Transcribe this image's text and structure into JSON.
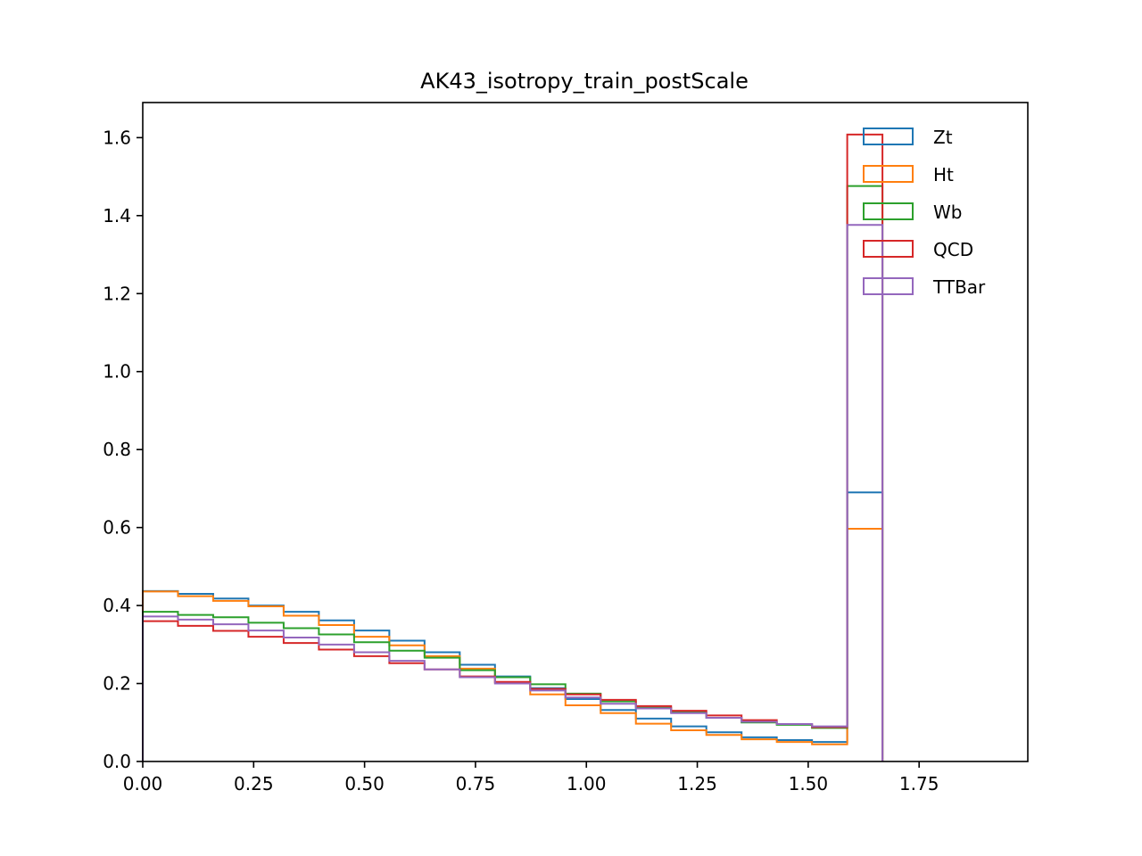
{
  "chart_data": {
    "type": "histogram-step",
    "title": "AK43_isotropy_train_postScale",
    "xlabel": "",
    "ylabel": "",
    "xlim": [
      0.0,
      1.995
    ],
    "ylim": [
      0.0,
      1.69
    ],
    "xticks": [
      0.0,
      0.25,
      0.5,
      0.75,
      1.0,
      1.25,
      1.5,
      1.75
    ],
    "xtick_labels": [
      "0.00",
      "0.25",
      "0.50",
      "0.75",
      "1.00",
      "1.25",
      "1.50",
      "1.75"
    ],
    "yticks": [
      0.0,
      0.2,
      0.4,
      0.6,
      0.8,
      1.0,
      1.2,
      1.4,
      1.6
    ],
    "ytick_labels": [
      "0.0",
      "0.2",
      "0.4",
      "0.6",
      "0.8",
      "1.0",
      "1.2",
      "1.4",
      "1.6"
    ],
    "bin_edges": [
      0.0,
      0.0794,
      0.1588,
      0.2382,
      0.3176,
      0.397,
      0.4764,
      0.5558,
      0.6352,
      0.7146,
      0.794,
      0.8734,
      0.9528,
      1.0322,
      1.1116,
      1.191,
      1.2704,
      1.3498,
      1.4292,
      1.5086,
      1.588,
      1.6674
    ],
    "grid": false,
    "legend_position": "upper right",
    "series": [
      {
        "name": "Zt",
        "color": "#1f77b4",
        "values": [
          0.437,
          0.43,
          0.418,
          0.4,
          0.384,
          0.362,
          0.336,
          0.31,
          0.28,
          0.248,
          0.218,
          0.188,
          0.16,
          0.132,
          0.11,
          0.09,
          0.075,
          0.062,
          0.055,
          0.05,
          0.69
        ]
      },
      {
        "name": "Ht",
        "color": "#ff7f0e",
        "values": [
          0.436,
          0.424,
          0.412,
          0.398,
          0.374,
          0.35,
          0.32,
          0.298,
          0.27,
          0.238,
          0.202,
          0.172,
          0.144,
          0.124,
          0.097,
          0.08,
          0.068,
          0.057,
          0.05,
          0.044,
          0.597
        ]
      },
      {
        "name": "Wb",
        "color": "#2ca02c",
        "values": [
          0.384,
          0.376,
          0.37,
          0.356,
          0.342,
          0.326,
          0.306,
          0.284,
          0.266,
          0.234,
          0.216,
          0.198,
          0.174,
          0.154,
          0.138,
          0.126,
          0.112,
          0.1,
          0.094,
          0.086,
          1.476
        ]
      },
      {
        "name": "QCD",
        "color": "#d62728",
        "values": [
          0.36,
          0.348,
          0.335,
          0.32,
          0.304,
          0.287,
          0.27,
          0.252,
          0.236,
          0.218,
          0.204,
          0.186,
          0.172,
          0.158,
          0.142,
          0.13,
          0.118,
          0.106,
          0.096,
          0.088,
          1.608
        ]
      },
      {
        "name": "TTBar",
        "color": "#9467bd",
        "values": [
          0.372,
          0.364,
          0.352,
          0.336,
          0.318,
          0.3,
          0.28,
          0.258,
          0.236,
          0.216,
          0.2,
          0.182,
          0.164,
          0.148,
          0.136,
          0.124,
          0.112,
          0.102,
          0.096,
          0.09,
          1.376
        ]
      }
    ]
  }
}
